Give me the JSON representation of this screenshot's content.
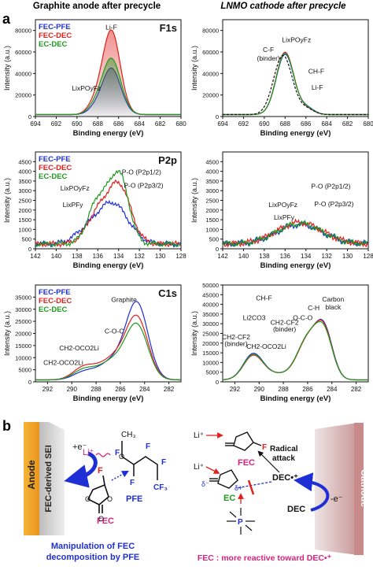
{
  "panel_labels": {
    "a": "a",
    "b": "b"
  },
  "column_titles": {
    "left": "Graphite anode after precycle",
    "right": "LNMO cathode after precycle"
  },
  "colors": {
    "blue": "#1f2fd6",
    "red": "#e0201c",
    "green": "#1e9a1e",
    "pink": "#d4247f",
    "cathode": "#d99a9a",
    "anode": "#f3a928"
  },
  "chart_data": [
    {
      "type": "line",
      "title": "F1s",
      "xlabel": "Binding energy (eV)",
      "ylabel": "Intensity (a.u.)",
      "xlim": [
        694,
        680
      ],
      "ylim": [
        0,
        90000
      ],
      "xticks": [
        694,
        692,
        690,
        688,
        686,
        684,
        682,
        680
      ],
      "yticks": [
        0,
        20000,
        40000,
        60000,
        80000
      ],
      "legend": [
        "FEC-PFE",
        "FEC-DEC",
        "EC-DEC"
      ],
      "series": [
        {
          "name": "FEC-PFE",
          "color": "#1f2fd6",
          "peaks": [
            {
              "c": 686.7,
              "w": 0.9,
              "h": 43000
            },
            {
              "c": 688.3,
              "w": 0.7,
              "h": 4000
            }
          ]
        },
        {
          "name": "FEC-DEC",
          "color": "#e0201c",
          "peaks": [
            {
              "c": 686.7,
              "w": 0.85,
              "h": 78000
            },
            {
              "c": 688.3,
              "w": 0.7,
              "h": 9000
            }
          ]
        },
        {
          "name": "EC-DEC",
          "color": "#1e9a1e",
          "peaks": [
            {
              "c": 686.7,
              "w": 0.9,
              "h": 52000
            },
            {
              "c": 688.3,
              "w": 0.7,
              "h": 6000
            }
          ]
        }
      ],
      "annotations": [
        {
          "text": "Li-F",
          "x": 686.7,
          "y": 81000
        },
        {
          "text": "LixPOyFz",
          "x": 689.1,
          "y": 24000
        }
      ]
    },
    {
      "type": "line",
      "title": "",
      "xlabel": "Binding energy (eV)",
      "ylabel": "Intensity (a.u.)",
      "xlim": [
        694,
        680
      ],
      "ylim": [
        0,
        90000
      ],
      "xticks": [
        694,
        692,
        690,
        688,
        686,
        684,
        682,
        680
      ],
      "yticks": [
        0,
        20000,
        40000,
        60000,
        80000
      ],
      "series": [
        {
          "name": "FEC-PFE",
          "color": "#1f2fd6",
          "peaks": [
            {
              "c": 688.0,
              "w": 0.85,
              "h": 56000
            },
            {
              "c": 685.9,
              "w": 0.7,
              "h": 6000
            }
          ]
        },
        {
          "name": "FEC-DEC",
          "color": "#e0201c",
          "peaks": [
            {
              "c": 688.0,
              "w": 0.85,
              "h": 58000
            },
            {
              "c": 685.9,
              "w": 0.7,
              "h": 5000
            }
          ]
        },
        {
          "name": "EC-DEC",
          "color": "#1e9a1e",
          "peaks": [
            {
              "c": 688.0,
              "w": 0.85,
              "h": 57000
            },
            {
              "c": 685.9,
              "w": 0.7,
              "h": 5500
            }
          ]
        },
        {
          "name": "",
          "color": "#111111",
          "dash": true,
          "peaks": [
            {
              "c": 688.2,
              "w": 0.9,
              "h": 55000
            },
            {
              "c": 685.9,
              "w": 0.7,
              "h": 5000
            }
          ]
        }
      ],
      "annotations": [
        {
          "text": "C-F",
          "x": 689.6,
          "y": 60000
        },
        {
          "text": "(binder)",
          "x": 689.6,
          "y": 52000
        },
        {
          "text": "LixPOyFz",
          "x": 686.9,
          "y": 69000
        },
        {
          "text": "CH-F",
          "x": 685.0,
          "y": 40000
        },
        {
          "text": "Li-F",
          "x": 684.9,
          "y": 25000
        }
      ]
    },
    {
      "type": "line",
      "title": "P2p",
      "xlabel": "Binding energy (eV)",
      "ylabel": "Intensity (a.u.)",
      "xlim": [
        142,
        128
      ],
      "ylim": [
        0,
        5000
      ],
      "xticks": [
        142,
        140,
        138,
        136,
        134,
        132,
        130,
        128
      ],
      "yticks": [
        0,
        500,
        1000,
        1500,
        2000,
        2500,
        3000,
        3500,
        4000,
        4500
      ],
      "legend": [
        "FEC-PFE",
        "FEC-DEC",
        "EC-DEC"
      ],
      "series": [
        {
          "name": "FEC-PFE",
          "color": "#1f2fd6",
          "peaks": [
            {
              "c": 134.6,
              "w": 1.5,
              "h": 2100
            },
            {
              "c": 137.2,
              "w": 1.2,
              "h": 500
            }
          ]
        },
        {
          "name": "FEC-DEC",
          "color": "#e0201c",
          "peaks": [
            {
              "c": 133.9,
              "w": 1.1,
              "h": 2900
            },
            {
              "c": 136.0,
              "w": 1.1,
              "h": 1500
            }
          ]
        },
        {
          "name": "EC-DEC",
          "color": "#1e9a1e",
          "peaks": [
            {
              "c": 133.9,
              "w": 0.9,
              "h": 3400
            },
            {
              "c": 135.9,
              "w": 1.0,
              "h": 2300
            }
          ]
        }
      ],
      "annotations": [
        {
          "text": "LixPOyFz",
          "x": 138.2,
          "y": 3000
        },
        {
          "text": "LixPFy",
          "x": 138.4,
          "y": 2150
        },
        {
          "text": "P-O (P2p1/2)",
          "x": 131.8,
          "y": 3850
        },
        {
          "text": "P-O (P2p3/2)",
          "x": 131.6,
          "y": 3150
        }
      ]
    },
    {
      "type": "line",
      "title": "",
      "xlabel": "Binding energy (eV)",
      "ylabel": "Intensity (a.u.)",
      "xlim": [
        142,
        128
      ],
      "ylim": [
        0,
        5000
      ],
      "xticks": [
        142,
        140,
        138,
        136,
        134,
        132,
        130,
        128
      ],
      "yticks": [
        0,
        500,
        1000,
        1500,
        2000,
        2500,
        3000,
        3500,
        4000,
        4500
      ],
      "series": [
        {
          "name": "FEC-PFE",
          "color": "#1f2fd6",
          "peaks": [
            {
              "c": 134.6,
              "w": 2.2,
              "h": 1000
            }
          ]
        },
        {
          "name": "FEC-DEC",
          "color": "#e0201c",
          "peaks": [
            {
              "c": 134.6,
              "w": 2.2,
              "h": 1100
            }
          ]
        },
        {
          "name": "EC-DEC",
          "color": "#1e9a1e",
          "peaks": [
            {
              "c": 134.6,
              "w": 2.2,
              "h": 1050
            }
          ]
        }
      ],
      "annotations": [
        {
          "text": "LixPOyFz",
          "x": 136.2,
          "y": 2150
        },
        {
          "text": "LixPFy",
          "x": 136.1,
          "y": 1500
        },
        {
          "text": "P-O (P2p1/2)",
          "x": 131.6,
          "y": 3100
        },
        {
          "text": "P-O (P2p3/2)",
          "x": 131.3,
          "y": 2200
        }
      ]
    },
    {
      "type": "line",
      "title": "C1s",
      "xlabel": "Binding energy (eV)",
      "ylabel": "Intensity (a.u.)",
      "xlim": [
        293,
        281
      ],
      "ylim": [
        0,
        40000
      ],
      "xticks": [
        292,
        290,
        288,
        286,
        284,
        282
      ],
      "yticks": [
        0,
        5000,
        10000,
        15000,
        20000,
        25000,
        30000,
        35000
      ],
      "legend": [
        "FEC-PFE",
        "FEC-DEC",
        "EC-DEC"
      ],
      "series": [
        {
          "name": "FEC-PFE",
          "color": "#1f2fd6",
          "peaks": [
            {
              "c": 284.6,
              "w": 0.9,
              "h": 30000
            },
            {
              "c": 286.5,
              "w": 1.2,
              "h": 8000
            },
            {
              "c": 289.0,
              "w": 0.9,
              "h": 3000
            }
          ]
        },
        {
          "name": "FEC-DEC",
          "color": "#e0201c",
          "peaks": [
            {
              "c": 284.6,
              "w": 0.9,
              "h": 24000
            },
            {
              "c": 286.5,
              "w": 1.2,
              "h": 9000
            },
            {
              "c": 289.0,
              "w": 0.9,
              "h": 5000
            }
          ]
        },
        {
          "name": "EC-DEC",
          "color": "#1e9a1e",
          "peaks": [
            {
              "c": 284.6,
              "w": 0.9,
              "h": 21000
            },
            {
              "c": 286.5,
              "w": 1.2,
              "h": 8000
            },
            {
              "c": 289.0,
              "w": 0.9,
              "h": 4000
            }
          ]
        }
      ],
      "annotations": [
        {
          "text": "Graphite",
          "x": 285.7,
          "y": 33000
        },
        {
          "text": "C-O-C",
          "x": 286.5,
          "y": 20000
        },
        {
          "text": "CH2-OCO2Li",
          "x": 289.4,
          "y": 13000
        },
        {
          "text": "CH2-OCO2Li",
          "x": 290.7,
          "y": 7000
        }
      ]
    },
    {
      "type": "line",
      "title": "",
      "xlabel": "Binding energy (eV)",
      "ylabel": "Intensity (a.u.)",
      "xlim": [
        293,
        281
      ],
      "ylim": [
        0,
        50000
      ],
      "xticks": [
        292,
        290,
        288,
        286,
        284,
        282
      ],
      "yticks": [
        0,
        5000,
        10000,
        15000,
        20000,
        25000,
        30000,
        35000,
        40000,
        45000,
        50000
      ],
      "series": [
        {
          "name": "FEC-PFE",
          "color": "#1f2fd6",
          "peaks": [
            {
              "c": 284.6,
              "w": 0.7,
              "h": 22000
            },
            {
              "c": 285.7,
              "w": 0.9,
              "h": 14000
            },
            {
              "c": 286.3,
              "w": 0.8,
              "h": 8000
            },
            {
              "c": 290.5,
              "w": 0.8,
              "h": 13000
            },
            {
              "c": 288.5,
              "w": 1.2,
              "h": 3000
            }
          ]
        },
        {
          "name": "FEC-DEC",
          "color": "#e0201c",
          "peaks": [
            {
              "c": 284.6,
              "w": 0.7,
              "h": 21000
            },
            {
              "c": 285.7,
              "w": 0.9,
              "h": 15000
            },
            {
              "c": 286.3,
              "w": 0.8,
              "h": 7000
            },
            {
              "c": 290.5,
              "w": 0.8,
              "h": 12000
            },
            {
              "c": 288.5,
              "w": 1.2,
              "h": 3000
            }
          ]
        },
        {
          "name": "EC-DEC",
          "color": "#1e9a1e",
          "peaks": [
            {
              "c": 284.6,
              "w": 0.7,
              "h": 20000
            },
            {
              "c": 285.7,
              "w": 0.9,
              "h": 15000
            },
            {
              "c": 286.3,
              "w": 0.8,
              "h": 7500
            },
            {
              "c": 290.5,
              "w": 0.8,
              "h": 12500
            },
            {
              "c": 288.5,
              "w": 1.2,
              "h": 3000
            }
          ]
        }
      ],
      "annotations": [
        {
          "text": "C-H",
          "x": 285.5,
          "y": 37000
        },
        {
          "text": "O-C-O",
          "x": 286.4,
          "y": 32000
        },
        {
          "text": "Carbon",
          "x": 283.9,
          "y": 41500
        },
        {
          "text": "black",
          "x": 283.9,
          "y": 37500
        },
        {
          "text": "CH-F",
          "x": 289.6,
          "y": 42000
        },
        {
          "text": "Li2CO3",
          "x": 290.4,
          "y": 32000
        },
        {
          "text": "CH2-CF2",
          "x": 291.9,
          "y": 22000
        },
        {
          "text": "(binder)",
          "x": 291.9,
          "y": 18500
        },
        {
          "text": "CH2-CF2",
          "x": 287.9,
          "y": 29500
        },
        {
          "text": "(binder)",
          "x": 287.9,
          "y": 26000
        },
        {
          "text": "CH2-OCO2Li",
          "x": 289.4,
          "y": 17000
        }
      ]
    }
  ],
  "scheme": {
    "anode_label": "Anode",
    "sei_label": "FEC-derived SEI",
    "e_label": "+e⁻",
    "li_label": "Li⁺",
    "methyl": "CH₃",
    "f": "F",
    "cf3": "CF₃",
    "pfe": "PFE",
    "fec": "FEC",
    "manip_text": "Manipulation of FEC decomposition by PFE",
    "cathode_label": "Cathode",
    "radical_attack": "Radical attack",
    "dec_radical": "DEC•⁺",
    "dec": "DEC",
    "minus_e": "-e⁻",
    "ec": "EC",
    "delta_plus": "δ+",
    "delta_minus": "δ⁻",
    "o": "O",
    "p": "P",
    "footer": "FEC : more reactive toward DEC•⁺"
  }
}
